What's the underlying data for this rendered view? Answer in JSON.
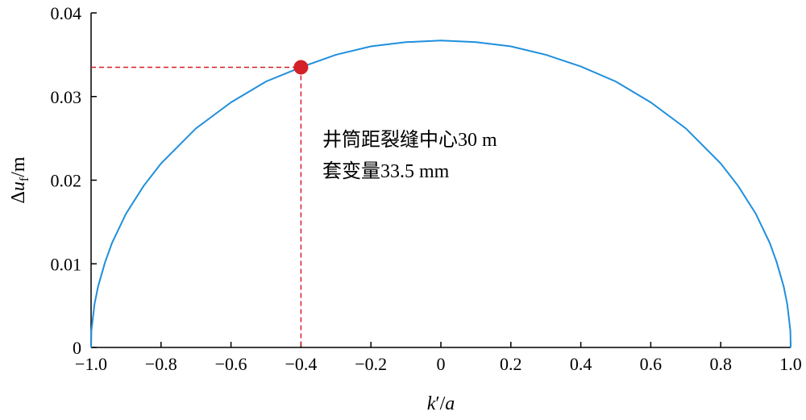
{
  "chart_data": {
    "type": "line",
    "xlim": [
      -1.0,
      1.0
    ],
    "ylim": [
      0,
      0.04
    ],
    "x_ticks": [
      "−1.0",
      "−0.8",
      "−0.6",
      "−0.4",
      "−0.2",
      "0",
      "0.2",
      "0.4",
      "0.6",
      "0.8",
      "1.0"
    ],
    "x_tick_values": [
      -1.0,
      -0.8,
      -0.6,
      -0.4,
      -0.2,
      0,
      0.2,
      0.4,
      0.6,
      0.8,
      1.0
    ],
    "y_ticks": [
      "0",
      "0.01",
      "0.02",
      "0.03",
      "0.04"
    ],
    "y_tick_values": [
      0,
      0.01,
      0.02,
      0.03,
      0.04
    ],
    "xlabel": {
      "main": "k",
      "prime": "′",
      "slash": "/",
      "var": "a"
    },
    "ylabel": {
      "delta": "Δ",
      "var": "u",
      "sub": "f",
      "unit": "/m"
    },
    "grid": false,
    "series": [
      {
        "color": "#1f8fdc",
        "points": [
          [
            -1.0,
            0.0
          ],
          [
            -0.999,
            0.002
          ],
          [
            -0.995,
            0.0035
          ],
          [
            -0.99,
            0.0052
          ],
          [
            -0.98,
            0.0073
          ],
          [
            -0.96,
            0.0102
          ],
          [
            -0.94,
            0.0125
          ],
          [
            -0.9,
            0.016
          ],
          [
            -0.85,
            0.0193
          ],
          [
            -0.8,
            0.022
          ],
          [
            -0.7,
            0.0262
          ],
          [
            -0.6,
            0.0293
          ],
          [
            -0.5,
            0.0318
          ],
          [
            -0.4,
            0.0335
          ],
          [
            -0.3,
            0.035
          ],
          [
            -0.2,
            0.036
          ],
          [
            -0.1,
            0.0365
          ],
          [
            0.0,
            0.0367
          ],
          [
            0.1,
            0.0365
          ],
          [
            0.2,
            0.036
          ],
          [
            0.3,
            0.035
          ],
          [
            0.4,
            0.0336
          ],
          [
            0.5,
            0.0318
          ],
          [
            0.6,
            0.0293
          ],
          [
            0.7,
            0.0262
          ],
          [
            0.8,
            0.022
          ],
          [
            0.85,
            0.0193
          ],
          [
            0.9,
            0.016
          ],
          [
            0.94,
            0.0125
          ],
          [
            0.96,
            0.0102
          ],
          [
            0.98,
            0.0073
          ],
          [
            0.99,
            0.0052
          ],
          [
            0.995,
            0.0035
          ],
          [
            0.999,
            0.002
          ],
          [
            1.0,
            0.0
          ]
        ]
      }
    ],
    "highlight_point": {
      "x": -0.4,
      "y": 0.0335,
      "color": "#d42027"
    },
    "guide_line_color": "#d42027",
    "annotation_lines": [
      "井筒距裂缝中心30 m",
      "套变量33.5 mm"
    ]
  }
}
